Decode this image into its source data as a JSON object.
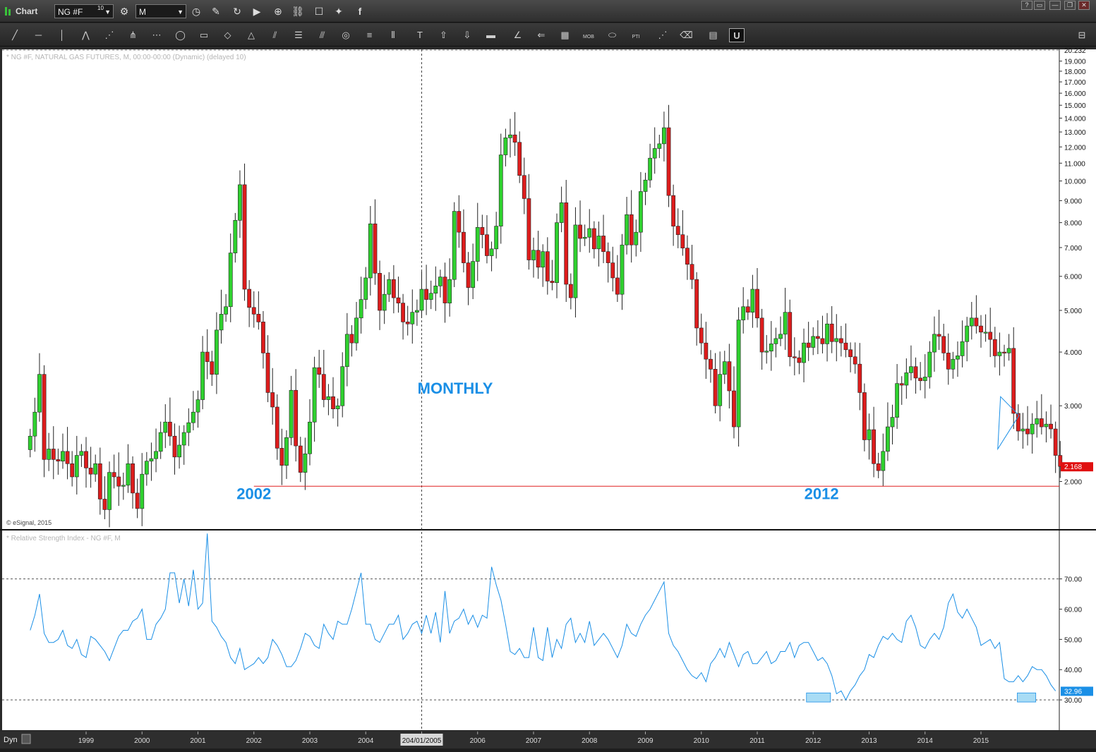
{
  "window": {
    "title": "Chart",
    "symbol": "NG #F",
    "symbol_superscript": "10",
    "interval": "M",
    "controls": [
      "?",
      "▭",
      "—",
      "❐",
      "✕"
    ]
  },
  "toolbar_icons": [
    "line-tool-icon",
    "horizontal-line-icon",
    "vertical-line-icon",
    "zigzag-icon",
    "fan-icon",
    "pitchfork-icon",
    "fib-fan-icon",
    "ellipse-icon",
    "rectangle-icon",
    "highlighter-icon",
    "triangle-icon",
    "parallel-lines-icon",
    "gann-icon",
    "channel-icon",
    "circle-icon",
    "text-lines-icon",
    "cycle-lines-icon",
    "text-icon",
    "arrow-up-icon",
    "arrow-down-icon",
    "box-icon",
    "angle-icon",
    "arrow-left-icon",
    "grid-icon",
    "mob-icon",
    "ellipse-label-icon",
    "pti-icon",
    "trend-icon",
    "eraser-icon",
    "comment-icon",
    "magnet-icon"
  ],
  "toolbar_labels": {
    "mob": "MOB",
    "pti": "PTI"
  },
  "chart_data": [
    {
      "type": "candlestick",
      "title": "* NG #F, NATURAL GAS FUTURES, M, 00:00-00:00 (Dynamic) (delayed 10)",
      "watermark": "© eSignal, 2015",
      "y_scale": "log",
      "ylim": [
        1.55,
        20.232
      ],
      "y_ticks": [
        2.0,
        3.0,
        4.0,
        5.0,
        6.0,
        7.0,
        8.0,
        9.0,
        10.0,
        11.0,
        12.0,
        13.0,
        14.0,
        15.0,
        16.0,
        17.0,
        18.0,
        19.0
      ],
      "y_tick_labels": [
        "2.000",
        "3.000",
        "4.000",
        "5.000",
        "6.000",
        "7.000",
        "8.000",
        "9.000",
        "10.000",
        "11.000",
        "12.000",
        "13.000",
        "14.000",
        "15.000",
        "16.000",
        "17.000",
        "18.000",
        "19.000"
      ],
      "y_top_label": "20.232",
      "last_price_label": "2.168",
      "last_price": 2.168,
      "support_level": 1.95,
      "support_start": 2002.0,
      "annotations": [
        {
          "text": "MONTHLY",
          "x": 2005.6,
          "y": 3.2
        },
        {
          "text": "2002",
          "x": 2002.0,
          "y": 1.82
        },
        {
          "text": "2012",
          "x": 2012.15,
          "y": 1.82
        }
      ],
      "pattern_triangle": [
        [
          2015.35,
          3.15
        ],
        [
          2015.68,
          2.85
        ],
        [
          2015.3,
          2.38
        ]
      ],
      "crosshair_x": 2005.0,
      "crosshair_label": "204/01/2005",
      "closes": [
        2.55,
        2.9,
        3.55,
        2.25,
        2.38,
        2.25,
        2.23,
        2.35,
        2.2,
        2.05,
        2.3,
        2.35,
        2.15,
        2.08,
        2.2,
        1.82,
        1.72,
        2.1,
        2.05,
        1.95,
        1.96,
        2.2,
        1.88,
        1.73,
        2.08,
        2.23,
        2.26,
        2.35,
        2.6,
        2.75,
        2.55,
        2.28,
        2.43,
        2.6,
        2.74,
        2.9,
        3.1,
        4.0,
        3.8,
        3.55,
        4.5,
        4.9,
        5.1,
        6.8,
        8.1,
        9.8,
        5.6,
        5.08,
        4.9,
        4.7,
        3.98,
        3.22,
        2.98,
        2.39,
        2.18,
        2.53,
        3.26,
        2.42,
        2.1,
        2.32,
        2.75,
        3.68,
        3.55,
        3.1,
        3.15,
        2.95,
        3.0,
        3.7,
        4.4,
        4.2,
        4.8,
        5.3,
        5.95,
        7.95,
        6.1,
        5.0,
        5.45,
        5.9,
        5.35,
        5.2,
        4.7,
        4.65,
        4.95,
        5.0,
        5.6,
        5.3,
        5.48,
        5.7,
        5.98,
        5.2,
        5.9,
        8.5,
        7.6,
        6.45,
        5.65,
        6.5,
        7.8,
        7.5,
        6.7,
        6.95,
        7.85,
        11.5,
        12.6,
        12.8,
        12.3,
        10.3,
        9.1,
        6.55,
        6.9,
        6.3,
        6.85,
        5.85,
        5.8,
        8.0,
        8.9,
        5.75,
        5.35,
        7.9,
        7.35,
        7.4,
        7.75,
        6.95,
        7.45,
        6.85,
        6.45,
        5.95,
        5.45,
        7.1,
        8.35,
        7.1,
        7.6,
        9.45,
        10.05,
        11.3,
        11.9,
        12.2,
        13.3,
        9.25,
        7.85,
        7.5,
        6.98,
        6.4,
        5.9,
        4.55,
        4.2,
        3.85,
        3.65,
        3.0,
        3.55,
        3.8,
        3.25,
        2.68,
        4.75,
        5.1,
        4.95,
        5.6,
        4.8,
        4.0,
        4.02,
        4.18,
        4.3,
        4.4,
        4.95,
        3.9,
        3.88,
        3.78,
        4.2,
        4.1,
        4.35,
        4.3,
        4.18,
        4.65,
        4.23,
        4.3,
        4.2,
        4.05,
        3.9,
        3.75,
        3.22,
        2.5,
        2.64,
        2.2,
        2.12,
        2.35,
        2.68,
        2.82,
        3.38,
        3.35,
        3.58,
        3.7,
        3.48,
        3.43,
        3.5,
        4.0,
        4.4,
        4.35,
        3.98,
        3.65,
        3.85,
        3.92,
        4.23,
        4.6,
        4.8,
        4.6,
        4.45,
        4.45,
        4.28,
        3.92,
        4.0,
        3.98,
        4.08,
        2.88,
        2.62,
        2.65,
        2.58,
        2.72,
        2.8,
        2.68,
        2.72,
        2.65,
        2.3,
        2.168
      ],
      "x_ticks": [
        1999,
        2000,
        2001,
        2002,
        2003,
        2004,
        2005,
        2006,
        2007,
        2008,
        2009,
        2010,
        2011,
        2012,
        2013,
        2014,
        2015
      ],
      "x_tick_labels": [
        "1999",
        "2000",
        "2001",
        "2002",
        "2003",
        "2004",
        "",
        "2006",
        "2007",
        "2008",
        "2009",
        "2010",
        "2011",
        "2012",
        "2013",
        "2014",
        "2015"
      ]
    },
    {
      "type": "line",
      "title": "* Relative Strength Index - NG #F, M",
      "ylim": [
        20,
        86
      ],
      "y_ticks": [
        30,
        40,
        50,
        60,
        70
      ],
      "y_tick_labels": [
        "30.00",
        "40.00",
        "50.00",
        "60.00",
        "70.00"
      ],
      "reference_lines": [
        30,
        70
      ],
      "last_value_label": "32.96",
      "last_value": 32.96,
      "oversold_highlights": [
        {
          "x0": 2011.88,
          "x1": 2012.31
        },
        {
          "x0": 2015.65,
          "x1": 2015.98
        }
      ],
      "values": [
        53,
        58,
        65,
        52,
        49,
        49,
        50,
        53,
        48,
        47,
        50,
        45,
        44,
        51,
        50,
        48,
        46,
        43,
        47,
        51,
        53,
        53,
        56,
        57,
        60,
        50,
        50,
        55,
        57,
        60,
        72,
        72,
        62,
        70,
        61,
        73,
        60,
        62,
        85,
        56,
        54,
        51,
        49,
        44,
        42,
        47,
        40,
        41,
        42,
        44,
        42,
        44,
        50,
        48,
        45,
        41,
        41,
        43,
        47,
        52,
        51,
        48,
        47,
        55,
        52,
        50,
        56,
        55,
        55,
        60,
        66,
        72,
        55,
        55,
        50,
        49,
        52,
        55,
        55,
        58,
        50,
        52,
        55,
        56,
        52,
        58,
        52,
        59,
        49,
        66,
        52,
        56,
        57,
        60,
        55,
        58,
        54,
        58,
        57,
        74,
        68,
        63,
        55,
        46,
        45,
        47,
        44,
        44,
        54,
        44,
        43,
        54,
        44,
        50,
        47,
        55,
        57,
        49,
        52,
        49,
        56,
        48,
        50,
        52,
        50,
        47,
        44,
        48,
        55,
        52,
        51,
        55,
        58,
        60,
        63,
        66,
        69,
        52,
        48,
        46,
        43,
        40,
        38,
        37,
        39,
        36,
        42,
        44,
        47,
        44,
        49,
        45,
        41,
        45,
        46,
        42,
        42,
        44,
        46,
        42,
        43,
        46,
        46,
        49,
        44,
        48,
        49,
        49,
        46,
        43,
        44,
        42,
        38,
        32,
        33,
        30,
        33,
        35,
        38,
        40,
        45,
        44,
        48,
        51,
        50,
        52,
        50,
        49,
        56,
        58,
        54,
        48,
        47,
        50,
        52,
        50,
        54,
        62,
        65,
        59,
        57,
        60,
        57,
        54,
        48,
        49,
        50,
        47,
        49,
        37,
        36,
        36,
        38,
        36,
        38,
        41,
        40,
        40,
        38,
        35,
        32.96
      ]
    }
  ],
  "status": {
    "dyn_label": "Dyn"
  }
}
